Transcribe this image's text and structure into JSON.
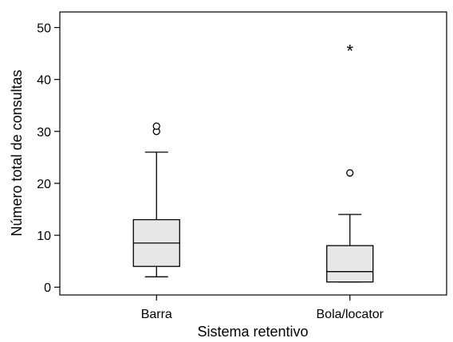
{
  "chart_data": {
    "type": "boxplot",
    "title": "",
    "xlabel": "Sistema retentivo",
    "ylabel": "Número total de consultas",
    "ylim": [
      -1.5,
      53
    ],
    "yticks": [
      0,
      10,
      20,
      30,
      40,
      50
    ],
    "grid": false,
    "colors": {
      "box_fill": "#e8e8e8",
      "stroke": "#000000"
    },
    "categories": [
      "Barra",
      "Bola/locator"
    ],
    "boxes": [
      {
        "category": "Barra",
        "whisker_low": 2,
        "q1": 4,
        "median": 8.5,
        "q3": 13,
        "whisker_high": 26,
        "outliers": [
          {
            "value": 30,
            "marker": "circle"
          },
          {
            "value": 31,
            "marker": "circle"
          }
        ]
      },
      {
        "category": "Bola/locator",
        "whisker_low": 1,
        "q1": 1,
        "median": 3,
        "q3": 8,
        "whisker_high": 14,
        "outliers": [
          {
            "value": 22,
            "marker": "circle"
          },
          {
            "value": 46,
            "marker": "star",
            "symbol": "*"
          }
        ]
      }
    ]
  }
}
